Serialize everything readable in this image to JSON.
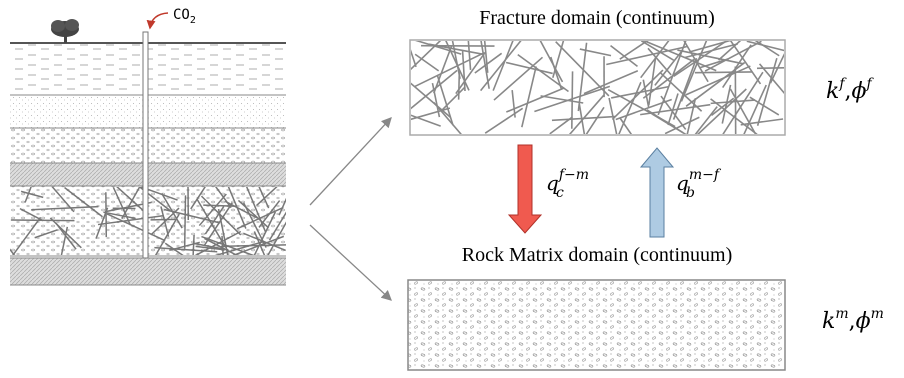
{
  "well_label": {
    "text": "CO",
    "sub": "2"
  },
  "fracture_domain": {
    "title": "Fracture domain (continuum)",
    "properties": [
      {
        "symbol": "k",
        "sup": "f"
      },
      {
        "symbol": "ϕ",
        "sup": "f"
      }
    ],
    "separator": ","
  },
  "matrix_domain": {
    "title": "Rock Matrix domain (continuum)",
    "properties": [
      {
        "symbol": "k",
        "sup": "m"
      },
      {
        "symbol": "ϕ",
        "sup": "m"
      }
    ],
    "separator": ","
  },
  "transfer": [
    {
      "symbol": "q",
      "sub": "c",
      "sup": "f−m"
    },
    {
      "symbol": "q",
      "sub": "b",
      "sup": "m−f"
    }
  ]
}
